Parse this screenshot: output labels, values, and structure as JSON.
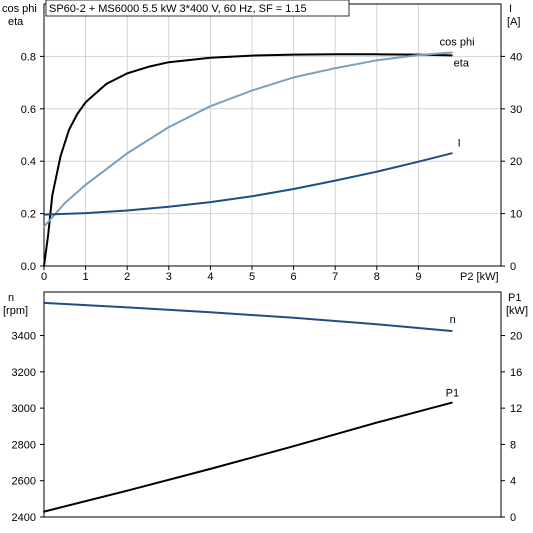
{
  "chart_data": [
    {
      "type": "line",
      "title": "SP60-2 + MS6000   5.5 kW   3*400 V, 60 Hz, SF = 1.15",
      "left_axis_label": [
        "cos phi",
        "eta"
      ],
      "right_axis_label": [
        "I",
        "[A]"
      ],
      "xlabel": "P2 [kW]",
      "xlim": [
        0,
        10
      ],
      "ylim_left": [
        0,
        1.0
      ],
      "ylim_right": [
        0,
        50
      ],
      "x_ticks": [
        "0",
        "1",
        "2",
        "3",
        "4",
        "5",
        "6",
        "7",
        "8",
        "9"
      ],
      "y_ticks_left": [
        "0.0",
        "0.2",
        "0.4",
        "0.6",
        "0.8"
      ],
      "y_ticks_right": [
        "0",
        "10",
        "20",
        "30",
        "40"
      ],
      "grid": true,
      "series": [
        {
          "name": "eta",
          "axis": "left",
          "color": "#000000",
          "x": [
            0,
            0.1,
            0.2,
            0.4,
            0.6,
            0.8,
            1,
            1.5,
            2,
            2.5,
            3,
            4,
            5,
            6,
            7,
            8,
            9,
            9.8
          ],
          "y": [
            0,
            0.12,
            0.27,
            0.42,
            0.52,
            0.58,
            0.625,
            0.695,
            0.735,
            0.76,
            0.778,
            0.795,
            0.803,
            0.807,
            0.808,
            0.808,
            0.807,
            0.804
          ]
        },
        {
          "name": "cos phi",
          "axis": "left",
          "color": "#7a9fbf",
          "x": [
            0,
            0.5,
            1,
            2,
            3,
            4,
            5,
            6,
            7,
            8,
            9,
            9.8
          ],
          "y": [
            0.15,
            0.24,
            0.31,
            0.43,
            0.53,
            0.61,
            0.67,
            0.72,
            0.755,
            0.785,
            0.805,
            0.815
          ]
        },
        {
          "name": "I",
          "axis": "right",
          "color": "#1f4e85",
          "x": [
            0,
            1,
            2,
            3,
            4,
            5,
            6,
            7,
            8,
            9,
            9.8
          ],
          "y": [
            9.8,
            10.1,
            10.6,
            11.3,
            12.2,
            13.3,
            14.7,
            16.3,
            18.0,
            19.9,
            21.5
          ]
        }
      ]
    },
    {
      "type": "line",
      "left_axis_label": [
        "n",
        "[rpm]"
      ],
      "right_axis_label": [
        "P1",
        "[kW]"
      ],
      "xlim": [
        0,
        10
      ],
      "ylim_left": [
        2400,
        3640
      ],
      "ylim_right": [
        0,
        24.8
      ],
      "y_ticks_left": [
        "2400",
        "2600",
        "2800",
        "3000",
        "3200",
        "3400"
      ],
      "y_ticks_right": [
        "0",
        "4",
        "8",
        "12",
        "16",
        "20"
      ],
      "grid": false,
      "series": [
        {
          "name": "n",
          "axis": "left",
          "color": "#1f4e85",
          "x": [
            0,
            2,
            4,
            6,
            8,
            9.8
          ],
          "y": [
            3580,
            3555,
            3528,
            3498,
            3462,
            3425
          ]
        },
        {
          "name": "P1",
          "axis": "right",
          "color": "#000000",
          "x": [
            0,
            2,
            4,
            6,
            8,
            9.8
          ],
          "y": [
            0.6,
            2.9,
            5.3,
            7.8,
            10.4,
            12.6
          ]
        }
      ]
    }
  ]
}
